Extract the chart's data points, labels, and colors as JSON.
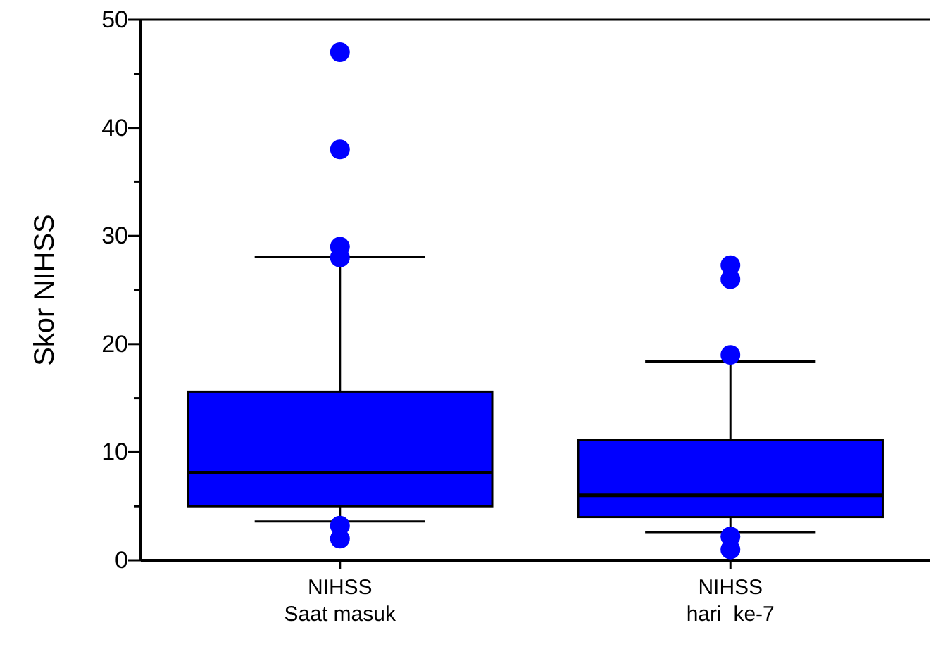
{
  "chart_data": {
    "type": "box",
    "ylabel": "Skor NIHSS",
    "categories": [
      "NIHSS\nSaat masuk",
      "NIHSS\nhari  ke-7"
    ],
    "color": "#0000ff",
    "boxes": [
      {
        "low": 3.6,
        "q1": 5,
        "median": 8.1,
        "q3": 15.6,
        "high": 28.1,
        "outliers": [
          47,
          38,
          29,
          28,
          3.2,
          2
        ]
      },
      {
        "low": 2.6,
        "q1": 4,
        "median": 6,
        "q3": 11.1,
        "high": 18.4,
        "outliers": [
          27.3,
          26,
          19,
          2.2,
          1
        ]
      }
    ],
    "ylim": [
      0,
      50
    ],
    "yticks": [
      0,
      {
        "value": 5,
        "label": null
      },
      10,
      {
        "value": 15,
        "label": null
      },
      20,
      {
        "value": 25,
        "label": null
      },
      30,
      {
        "value": 35,
        "label": null
      },
      40,
      {
        "value": 45,
        "label": null
      },
      50
    ],
    "grid": false
  }
}
